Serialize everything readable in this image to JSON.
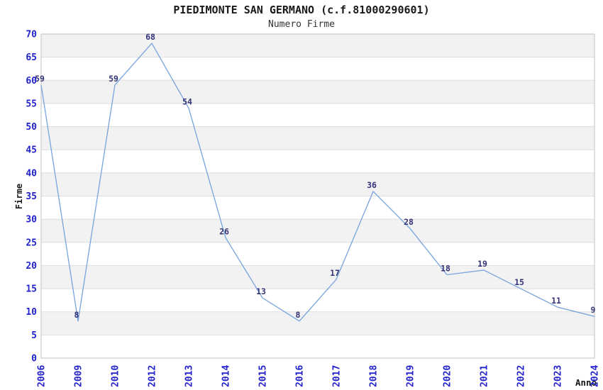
{
  "chart_data": {
    "type": "line",
    "title": "PIEDIMONTE SAN GERMANO (c.f.81000290601)",
    "subtitle": "Numero Firme",
    "xlabel": "Anno",
    "ylabel": "Firme",
    "categories": [
      "2006",
      "2009",
      "2010",
      "2012",
      "2013",
      "2014",
      "2015",
      "2016",
      "2017",
      "2018",
      "2019",
      "2020",
      "2021",
      "2022",
      "2023",
      "2024"
    ],
    "values": [
      59,
      8,
      59,
      68,
      54,
      26,
      13,
      8,
      17,
      36,
      28,
      18,
      19,
      15,
      11,
      9
    ],
    "ylim": [
      0,
      70
    ],
    "ytick_step": 5,
    "grid": "horizontal-gridlines-with-alternating-bands",
    "legend_position": "none",
    "colors": {
      "line": "#76A4DD",
      "tick_label": "#2222CC",
      "point_label": "#333377",
      "band_fill": "#F2F2F2",
      "gridline": "#DDDDDD",
      "frame": "#C0C0C0"
    }
  }
}
